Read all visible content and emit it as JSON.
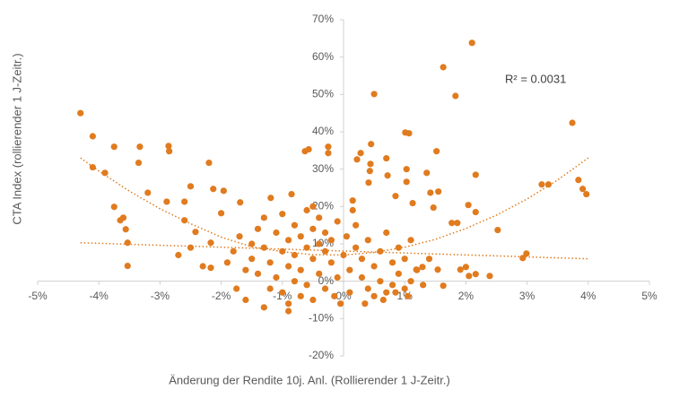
{
  "chart_data": {
    "type": "scatter",
    "y_label": "CTA Index (rollierender 1 J-Zeitr.)",
    "x_label": "Änderung der Rendite 10j. Anl. (Rollierender 1 J-Zeitr.)",
    "annotation": "R² = 0.0031",
    "color": "#e07b1f",
    "xlim": [
      -5,
      5
    ],
    "ylim": [
      -20,
      70
    ],
    "xticks": [
      {
        "value": -5,
        "label": "-5%"
      },
      {
        "value": -4,
        "label": "-4%"
      },
      {
        "value": -3,
        "label": "-3%"
      },
      {
        "value": -2,
        "label": "-2%"
      },
      {
        "value": -1,
        "label": "-1%"
      },
      {
        "value": 0,
        "label": "0%"
      },
      {
        "value": 1,
        "label": "1%"
      },
      {
        "value": 2,
        "label": "2%"
      },
      {
        "value": 3,
        "label": "3%"
      },
      {
        "value": 4,
        "label": "4%"
      },
      {
        "value": 5,
        "label": "5%"
      }
    ],
    "yticks": [
      {
        "value": -20,
        "label": "-20%"
      },
      {
        "value": -10,
        "label": "-10%"
      },
      {
        "value": 0,
        "label": "0%"
      },
      {
        "value": 10,
        "label": "10%"
      },
      {
        "value": 20,
        "label": "20%"
      },
      {
        "value": 30,
        "label": "30%"
      },
      {
        "value": 40,
        "label": "40%"
      },
      {
        "value": 50,
        "label": "50%"
      },
      {
        "value": 60,
        "label": "60%"
      },
      {
        "value": 70,
        "label": "70%"
      }
    ],
    "x": [
      -4.3,
      -4.1,
      -3.75,
      -3.33,
      -3.35,
      -2.86,
      -2.85,
      -4.1,
      -3.9,
      -3.2,
      -2.89,
      -2.2,
      -2.5,
      -3.75,
      -3.6,
      -3.65,
      -3.56,
      -3.53,
      -3.53,
      -2.6,
      -2.6,
      -2.13,
      -1.96,
      -2,
      -2.42,
      -2.17,
      -2.17,
      -1.69,
      -1.19,
      -0.85,
      -0.63,
      -0.57,
      -0.25,
      -0.25,
      0.5,
      2.1,
      1.63,
      1.83,
      3.74,
      1.01,
      1.07,
      0.28,
      0.22,
      0.45,
      0.43,
      0.44,
      0.7,
      0.72,
      1.03,
      1.52,
      1.36,
      2.16,
      1.55,
      1.42,
      1.13,
      0.15,
      0.41,
      1.03,
      0.85,
      1.47,
      1.77,
      1.86,
      2.04,
      2.16,
      2.52,
      3.24,
      3.35,
      3.84,
      3.91,
      3.97,
      2.99,
      2.93,
      1.91,
      2,
      2.16,
      2.39,
      2.05,
      1.63,
      1.54,
      1.29,
      1.19,
      -1.9,
      -1.8,
      -1.7,
      -1.6,
      -1.5,
      -1.5,
      -1.4,
      -1.4,
      -1.3,
      -1.3,
      -1.2,
      -1.2,
      -1.1,
      -1.1,
      -1,
      -1,
      -1,
      -0.9,
      -0.9,
      -0.9,
      -0.8,
      -0.8,
      -0.8,
      -0.7,
      -0.7,
      -0.7,
      -0.6,
      -0.6,
      -0.6,
      -0.5,
      -0.5,
      -0.5,
      -0.4,
      -0.4,
      -0.4,
      -0.3,
      -0.3,
      -0.3,
      -0.2,
      -0.2,
      -0.1,
      -0.1,
      -0.05,
      0,
      0.05,
      0.1,
      0.1,
      0.2,
      0.2,
      0.3,
      0.3,
      0.4,
      0.4,
      0.5,
      0.5,
      0.6,
      0.6,
      0.7,
      0.7,
      0.8,
      0.8,
      0.9,
      0.9,
      1,
      1,
      1.1,
      1.1,
      1.2,
      1.3,
      1.4,
      -1.3,
      -0.9,
      -1.6,
      -2.3,
      -2.5,
      -2.7,
      -0.5,
      0.15,
      0.35,
      0.65,
      0.85,
      1.05,
      -1.75,
      -0.15
    ],
    "values": [
      45,
      38.8,
      36,
      36,
      31.7,
      36.2,
      34.8,
      30.5,
      29,
      23.7,
      21.3,
      31.7,
      25.4,
      19.9,
      17,
      16.3,
      13.9,
      10.3,
      4.1,
      21.3,
      16.3,
      24.7,
      24.2,
      18.2,
      13.2,
      10.3,
      3.6,
      21.1,
      22.3,
      23.3,
      34.8,
      35.3,
      36,
      34.3,
      50.1,
      63.8,
      57.3,
      49.6,
      42.4,
      39.8,
      39.6,
      34.3,
      32.6,
      36.7,
      29.5,
      31.4,
      32.9,
      28.3,
      30,
      34.8,
      29,
      28.5,
      24,
      23.7,
      20.9,
      21.6,
      26.4,
      26.6,
      22.8,
      19.7,
      15.6,
      15.6,
      20.4,
      18.5,
      13.7,
      25.9,
      25.9,
      27.1,
      24.7,
      23.3,
      7.4,
      6.2,
      3.1,
      3.8,
      1.9,
      1.4,
      1.4,
      -1.2,
      3.1,
      3.8,
      3.1,
      5,
      8,
      12,
      3,
      10,
      6,
      14,
      2,
      17,
      9,
      5,
      -2,
      13,
      1,
      8,
      18,
      -3,
      11,
      4,
      -6,
      15,
      7,
      0,
      12,
      3,
      -4,
      9,
      19,
      -1,
      14,
      6,
      -5,
      10,
      2,
      17,
      8,
      -2,
      13,
      5,
      11,
      1,
      16,
      -6,
      7,
      12,
      3,
      -3,
      9,
      15,
      1,
      6,
      -2,
      11,
      4,
      -4,
      8,
      0,
      13,
      -3,
      5,
      -1,
      2,
      9,
      -2,
      6,
      0,
      11,
      3,
      -1,
      6,
      -7,
      -8,
      -5,
      4,
      9,
      7,
      20,
      19,
      -6,
      -5,
      -3,
      -4,
      -2,
      -4
    ],
    "trendlines": [
      {
        "name": "linear",
        "x": [
          -4.3,
          4
        ],
        "values": [
          10.3,
          6
        ]
      },
      {
        "name": "poly2",
        "x": [
          -4.3,
          -4,
          -3.5,
          -3,
          -2.5,
          -2,
          -1.5,
          -1,
          -0.5,
          0,
          0.5,
          1,
          1.5,
          2,
          2.5,
          3,
          3.5,
          4
        ],
        "values": [
          33,
          29.5,
          24.1,
          19.4,
          15.4,
          11.8,
          9.2,
          7.9,
          7.1,
          7,
          7.7,
          9.1,
          11.2,
          14.1,
          17.7,
          22,
          27.1,
          33
        ]
      }
    ]
  }
}
